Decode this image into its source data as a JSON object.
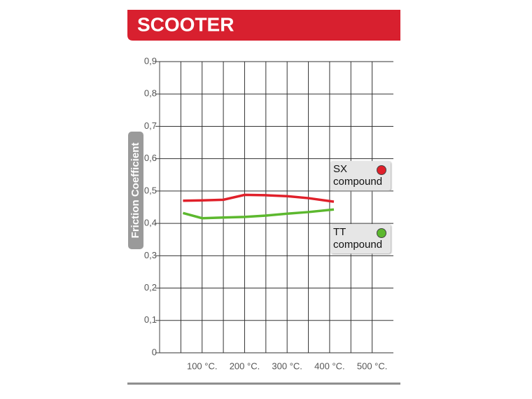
{
  "chart_data": {
    "type": "line",
    "title": "SCOOTER",
    "y_label": "Friction Coefficient",
    "x": [
      55,
      100,
      150,
      200,
      250,
      300,
      350,
      410
    ],
    "series": [
      {
        "name": "SX\ncompound",
        "color": "#e0202a",
        "values": [
          0.47,
          0.471,
          0.473,
          0.488,
          0.487,
          0.484,
          0.478,
          0.467
        ]
      },
      {
        "name": "TT\ncompound",
        "color": "#5cb82e",
        "values": [
          0.432,
          0.416,
          0.418,
          0.42,
          0.424,
          0.43,
          0.435,
          0.443
        ]
      }
    ],
    "xlim": [
      0,
      550
    ],
    "xticks": [
      {
        "value": 100,
        "label": "100 °C."
      },
      {
        "value": 200,
        "label": "200 °C."
      },
      {
        "value": 300,
        "label": "300 °C."
      },
      {
        "value": 400,
        "label": "400 °C."
      },
      {
        "value": 500,
        "label": "500 °C."
      }
    ],
    "ylim": [
      0,
      0.9
    ],
    "yticks": [
      0,
      {
        "value": 0.1,
        "label": "0,1"
      },
      {
        "value": 0.2,
        "label": "0,2"
      },
      {
        "value": 0.3,
        "label": "0,3"
      },
      {
        "value": 0.4,
        "label": "0,4"
      },
      {
        "value": 0.5,
        "label": "0,5"
      },
      {
        "value": 0.6,
        "label": "0,6"
      },
      {
        "value": 0.7,
        "label": "0,7"
      },
      {
        "value": 0.8,
        "label": "0,8"
      },
      {
        "value": 0.9,
        "label": "0,9"
      }
    ],
    "grid": true
  }
}
